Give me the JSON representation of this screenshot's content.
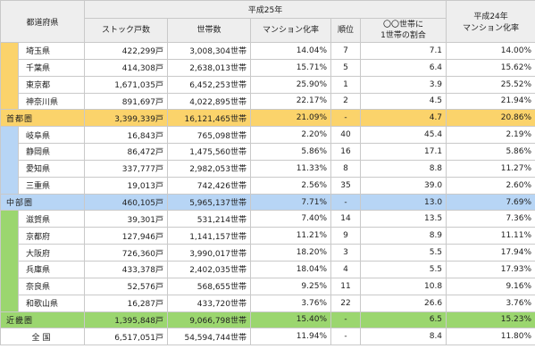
{
  "header": {
    "prefecture": "都道府県",
    "group_h25": "平成25年",
    "stock": "ストック戸数",
    "households": "世帯数",
    "rate": "マンション化率",
    "rank": "順位",
    "ratio_line1": "〇〇世帯に",
    "ratio_line2": "1世帯の割合",
    "h24_line1": "平成24年",
    "h24_line2": "マンション化率"
  },
  "groups": [
    {
      "rows": [
        {
          "name": "埼玉県",
          "stock": "422,299戸",
          "households": "3,008,304世帯",
          "rate": "14.04%",
          "rank": "7",
          "ratio": "7.1",
          "h24": "14.00%"
        },
        {
          "name": "千葉県",
          "stock": "414,308戸",
          "households": "2,638,013世帯",
          "rate": "15.71%",
          "rank": "5",
          "ratio": "6.4",
          "h24": "15.62%"
        },
        {
          "name": "東京都",
          "stock": "1,671,035戸",
          "households": "6,452,253世帯",
          "rate": "25.90%",
          "rank": "1",
          "ratio": "3.9",
          "h24": "25.52%"
        },
        {
          "name": "神奈川県",
          "stock": "891,697戸",
          "households": "4,022,895世帯",
          "rate": "22.17%",
          "rank": "2",
          "ratio": "4.5",
          "h24": "21.94%"
        }
      ],
      "total": {
        "name": "首都圏",
        "stock": "3,399,339戸",
        "households": "16,121,465世帯",
        "rate": "21.09%",
        "rank": "-",
        "ratio": "4.7",
        "h24": "20.86%"
      }
    },
    {
      "rows": [
        {
          "name": "岐阜県",
          "stock": "16,843戸",
          "households": "765,098世帯",
          "rate": "2.20%",
          "rank": "40",
          "ratio": "45.4",
          "h24": "2.19%"
        },
        {
          "name": "静岡県",
          "stock": "86,472戸",
          "households": "1,475,560世帯",
          "rate": "5.86%",
          "rank": "16",
          "ratio": "17.1",
          "h24": "5.86%"
        },
        {
          "name": "愛知県",
          "stock": "337,777戸",
          "households": "2,982,053世帯",
          "rate": "11.33%",
          "rank": "8",
          "ratio": "8.8",
          "h24": "11.27%"
        },
        {
          "name": "三重県",
          "stock": "19,013戸",
          "households": "742,426世帯",
          "rate": "2.56%",
          "rank": "35",
          "ratio": "39.0",
          "h24": "2.60%"
        }
      ],
      "total": {
        "name": "中部圏",
        "stock": "460,105戸",
        "households": "5,965,137世帯",
        "rate": "7.71%",
        "rank": "-",
        "ratio": "13.0",
        "h24": "7.69%"
      }
    },
    {
      "rows": [
        {
          "name": "滋賀県",
          "stock": "39,301戸",
          "households": "531,214世帯",
          "rate": "7.40%",
          "rank": "14",
          "ratio": "13.5",
          "h24": "7.36%"
        },
        {
          "name": "京都府",
          "stock": "127,946戸",
          "households": "1,141,157世帯",
          "rate": "11.21%",
          "rank": "9",
          "ratio": "8.9",
          "h24": "11.11%"
        },
        {
          "name": "大阪府",
          "stock": "726,360戸",
          "households": "3,990,017世帯",
          "rate": "18.20%",
          "rank": "3",
          "ratio": "5.5",
          "h24": "17.94%"
        },
        {
          "name": "兵庫県",
          "stock": "433,378戸",
          "households": "2,402,035世帯",
          "rate": "18.04%",
          "rank": "4",
          "ratio": "5.5",
          "h24": "17.93%"
        },
        {
          "name": "奈良県",
          "stock": "52,576戸",
          "households": "568,655世帯",
          "rate": "9.25%",
          "rank": "11",
          "ratio": "10.8",
          "h24": "9.16%"
        },
        {
          "name": "和歌山県",
          "stock": "16,287戸",
          "households": "433,720世帯",
          "rate": "3.76%",
          "rank": "22",
          "ratio": "26.6",
          "h24": "3.76%"
        }
      ],
      "total": {
        "name": "近畿圏",
        "stock": "1,395,848戸",
        "households": "9,066,798世帯",
        "rate": "15.40%",
        "rank": "-",
        "ratio": "6.5",
        "h24": "15.23%"
      }
    }
  ],
  "grand_total": {
    "name": "全国",
    "stock": "6,517,051戸",
    "households": "54,594,744世帯",
    "rate": "11.94%",
    "rank": "-",
    "ratio": "8.4",
    "h24": "11.80%"
  }
}
